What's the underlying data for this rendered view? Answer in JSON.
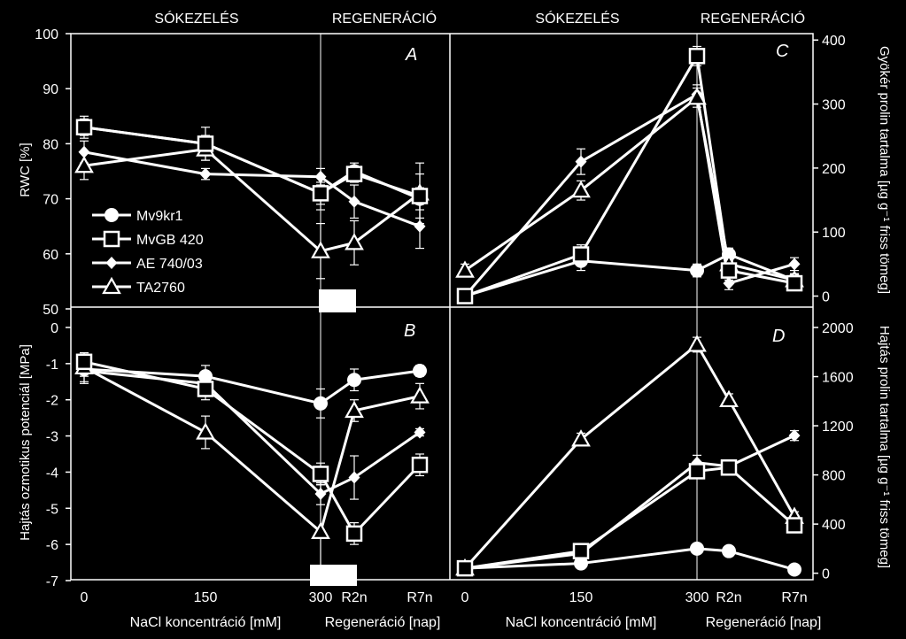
{
  "colors": {
    "background": "#000000",
    "foreground": "#ffffff"
  },
  "headers": {
    "salt": "SÓKEZELÉS",
    "regen": "REGENERÁCIÓ"
  },
  "x_axis": {
    "ticks": [
      "0",
      "150",
      "300",
      "R2n",
      "R7n"
    ],
    "label_left": "NaCl koncentráció [mM]",
    "label_right": "Regeneráció [nap]"
  },
  "legend": {
    "placement": "left-middle of panel A",
    "entries": [
      {
        "name": "Mv9kr1",
        "marker": "circle"
      },
      {
        "name": "MvGB 420",
        "marker": "square"
      },
      {
        "name": "AE 740/03",
        "marker": "diamond"
      },
      {
        "name": "TA2760",
        "marker": "triangle"
      }
    ]
  },
  "chart_data": [
    {
      "panel": "A",
      "type": "line",
      "categories": [
        "0",
        "150",
        "300",
        "R2n",
        "R7n"
      ],
      "ylabel": "RWC [%]",
      "ylim": [
        50,
        100
      ],
      "yticks": [
        50,
        60,
        70,
        80,
        90,
        100
      ],
      "y_axis_side": "left",
      "marker_bar": "300",
      "series": [
        {
          "name": "Mv9kr1",
          "values": [
            83,
            80,
            71,
            75,
            70
          ],
          "err": [
            1.5,
            1.5,
            2,
            1.5,
            2
          ]
        },
        {
          "name": "MvGB 420",
          "values": [
            83,
            80,
            71,
            74.5,
            70.5
          ],
          "err": [
            2,
            3,
            3,
            1.5,
            4
          ]
        },
        {
          "name": "AE 740/03",
          "values": [
            78.5,
            74.5,
            74,
            69.5,
            65
          ],
          "err": [
            2,
            1,
            1.5,
            3,
            4
          ]
        },
        {
          "name": "TA2760",
          "values": [
            76,
            79,
            60.5,
            62,
            71
          ],
          "err": [
            2.5,
            2,
            5,
            4,
            5.5
          ]
        }
      ]
    },
    {
      "panel": "B",
      "type": "line",
      "categories": [
        "0",
        "150",
        "300",
        "R2n",
        "R7n"
      ],
      "ylabel": "Hajtás ozmotikus potenciál [MPa]",
      "ylim": [
        -7,
        0
      ],
      "yticks": [
        -7,
        -6,
        -5,
        -4,
        -3,
        -2,
        -1,
        0
      ],
      "y_axis_side": "left",
      "marker_bar": "300",
      "series": [
        {
          "name": "Mv9kr1",
          "values": [
            -1.15,
            -1.35,
            -2.1,
            -1.45,
            -1.2
          ],
          "err": [
            0.2,
            0.3,
            0.4,
            0.3,
            0.15
          ]
        },
        {
          "name": "MvGB 420",
          "values": [
            -0.95,
            -1.7,
            -4.05,
            -5.7,
            -3.8
          ],
          "err": [
            0.25,
            0.3,
            0.3,
            0.3,
            0.3
          ]
        },
        {
          "name": "AE 740/03",
          "values": [
            -1.2,
            -1.55,
            -4.6,
            -4.15,
            -2.9
          ],
          "err": [
            0.35,
            0.3,
            0.3,
            0.6,
            0.1
          ]
        },
        {
          "name": "TA2760",
          "values": [
            -1.1,
            -2.9,
            -5.65,
            -2.3,
            -1.9
          ],
          "err": [
            0.4,
            0.45,
            1.3,
            0.3,
            0.35
          ]
        }
      ]
    },
    {
      "panel": "C",
      "type": "line",
      "categories": [
        "0",
        "150",
        "300",
        "R2n",
        "R7n"
      ],
      "ylabel": "Gyökér prolin tartalma [µg g⁻¹ friss tömeg]",
      "ylim": [
        -20,
        410
      ],
      "yticks": [
        0,
        100,
        200,
        300,
        400
      ],
      "y_axis_side": "right",
      "series": [
        {
          "name": "Mv9kr1",
          "values": [
            0,
            55,
            40,
            65,
            25
          ],
          "err": [
            10,
            15,
            10,
            10,
            10
          ]
        },
        {
          "name": "MvGB 420",
          "values": [
            0,
            65,
            375,
            40,
            20
          ],
          "err": [
            10,
            15,
            15,
            15,
            10
          ]
        },
        {
          "name": "AE 740/03",
          "values": [
            0,
            210,
            315,
            20,
            50
          ],
          "err": [
            10,
            20,
            15,
            10,
            10
          ]
        },
        {
          "name": "TA2760",
          "values": [
            40,
            165,
            310,
            50,
            25
          ],
          "err": [
            10,
            15,
            15,
            15,
            10
          ]
        }
      ]
    },
    {
      "panel": "D",
      "type": "line",
      "categories": [
        "0",
        "150",
        "300",
        "R2n",
        "R7n"
      ],
      "ylabel": "Hajtás prolin tartalma [µg g⁻¹ friss tömeg]",
      "ylim": [
        -60,
        2000
      ],
      "yticks": [
        0,
        400,
        800,
        1200,
        1600,
        2000
      ],
      "y_axis_side": "right",
      "series": [
        {
          "name": "Mv9kr1",
          "values": [
            40,
            80,
            200,
            180,
            30
          ],
          "err": [
            20,
            20,
            30,
            20,
            10
          ]
        },
        {
          "name": "MvGB 420",
          "values": [
            40,
            180,
            830,
            860,
            390
          ],
          "err": [
            20,
            30,
            60,
            40,
            30
          ]
        },
        {
          "name": "AE 740/03",
          "values": [
            40,
            160,
            900,
            870,
            1120
          ],
          "err": [
            20,
            30,
            60,
            40,
            40
          ]
        },
        {
          "name": "TA2760",
          "values": [
            40,
            1090,
            1860,
            1410,
            460
          ],
          "err": [
            20,
            50,
            60,
            50,
            40
          ]
        }
      ]
    }
  ]
}
